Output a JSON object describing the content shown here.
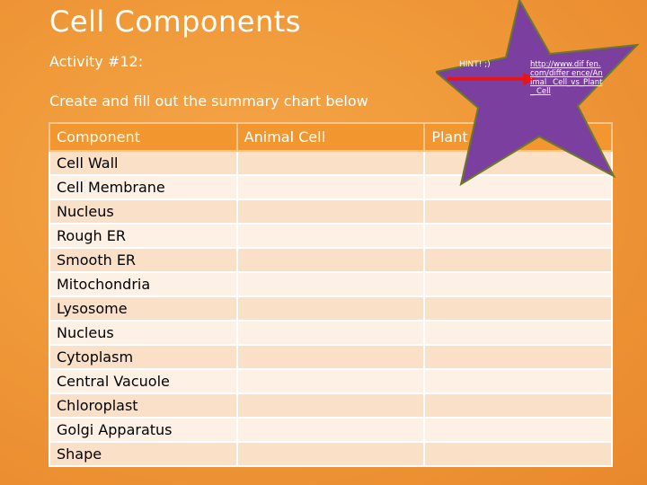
{
  "slide": {
    "title": "Cell Components",
    "subtitle": "Activity #12:",
    "instructions": "Create and fill out the summary chart below",
    "hint": "HINT! ;)",
    "link": "http://www.diffen.com/difference/Animal_Cell_vs_Plant_Cell",
    "link_display": "http://www.dif fen.com/differ ence/Animal_ Cell_vs_Plant_ Cell"
  },
  "table": {
    "headers": [
      "Component",
      "Animal Cell",
      "Plant Cell"
    ],
    "rows": [
      [
        "Cell Wall",
        "",
        ""
      ],
      [
        "Cell Membrane",
        "",
        ""
      ],
      [
        "Nucleus",
        "",
        ""
      ],
      [
        "Rough ER",
        "",
        ""
      ],
      [
        "Smooth ER",
        "",
        ""
      ],
      [
        "Mitochondria",
        "",
        ""
      ],
      [
        "Lysosome",
        "",
        ""
      ],
      [
        "Nucleus",
        "",
        ""
      ],
      [
        "Cytoplasm",
        "",
        ""
      ],
      [
        "Central Vacuole",
        "",
        ""
      ],
      [
        "Chloroplast",
        "",
        ""
      ],
      [
        "Golgi Apparatus",
        "",
        ""
      ],
      [
        "Shape",
        "",
        ""
      ]
    ]
  },
  "colors": {
    "background": "#f09a3a",
    "header": "#f2962f",
    "row_light": "#fdf0e4",
    "row_dark": "#fbe0c8",
    "star_fill": "#7b3fa0",
    "star_stroke": "#6b7a2a",
    "arrow": "#e8141c"
  },
  "icons": {
    "star": "star-shape",
    "arrow": "arrow-right"
  }
}
